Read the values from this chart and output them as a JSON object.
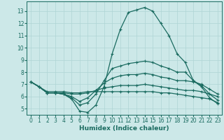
{
  "xlabel": "Humidex (Indice chaleur)",
  "ylabel": "",
  "xlim": [
    -0.5,
    23.5
  ],
  "ylim": [
    4.5,
    13.8
  ],
  "yticks": [
    5,
    6,
    7,
    8,
    9,
    10,
    11,
    12,
    13
  ],
  "xticks": [
    0,
    1,
    2,
    3,
    4,
    5,
    6,
    7,
    8,
    9,
    10,
    11,
    12,
    13,
    14,
    15,
    16,
    17,
    18,
    19,
    20,
    21,
    22,
    23
  ],
  "bg_color": "#cce8e8",
  "grid_color": "#afd4d4",
  "line_color": "#1a6b60",
  "lines": [
    [
      7.2,
      6.8,
      6.3,
      6.3,
      6.2,
      5.8,
      4.8,
      4.7,
      5.3,
      6.8,
      9.5,
      11.5,
      12.9,
      13.1,
      13.3,
      13.0,
      12.0,
      11.0,
      9.5,
      8.8,
      7.3,
      6.8,
      5.9,
      5.4
    ],
    [
      7.2,
      6.8,
      6.3,
      6.3,
      6.2,
      5.9,
      5.3,
      5.5,
      6.2,
      7.3,
      8.3,
      8.5,
      8.7,
      8.8,
      8.9,
      8.8,
      8.5,
      8.3,
      8.0,
      8.0,
      7.3,
      6.9,
      6.2,
      5.7
    ],
    [
      7.2,
      6.8,
      6.3,
      6.3,
      6.2,
      6.0,
      5.6,
      5.9,
      6.5,
      7.1,
      7.5,
      7.7,
      7.8,
      7.8,
      7.9,
      7.8,
      7.6,
      7.5,
      7.3,
      7.3,
      7.2,
      7.0,
      6.6,
      6.2
    ],
    [
      7.2,
      6.8,
      6.3,
      6.3,
      6.3,
      6.2,
      6.2,
      6.3,
      6.5,
      6.7,
      6.8,
      6.9,
      6.9,
      6.9,
      7.0,
      6.9,
      6.8,
      6.7,
      6.6,
      6.5,
      6.5,
      6.4,
      6.2,
      6.0
    ],
    [
      7.2,
      6.8,
      6.4,
      6.4,
      6.4,
      6.3,
      6.3,
      6.4,
      6.4,
      6.4,
      6.4,
      6.4,
      6.4,
      6.4,
      6.4,
      6.4,
      6.3,
      6.3,
      6.2,
      6.1,
      6.0,
      5.9,
      5.8,
      5.5
    ]
  ]
}
